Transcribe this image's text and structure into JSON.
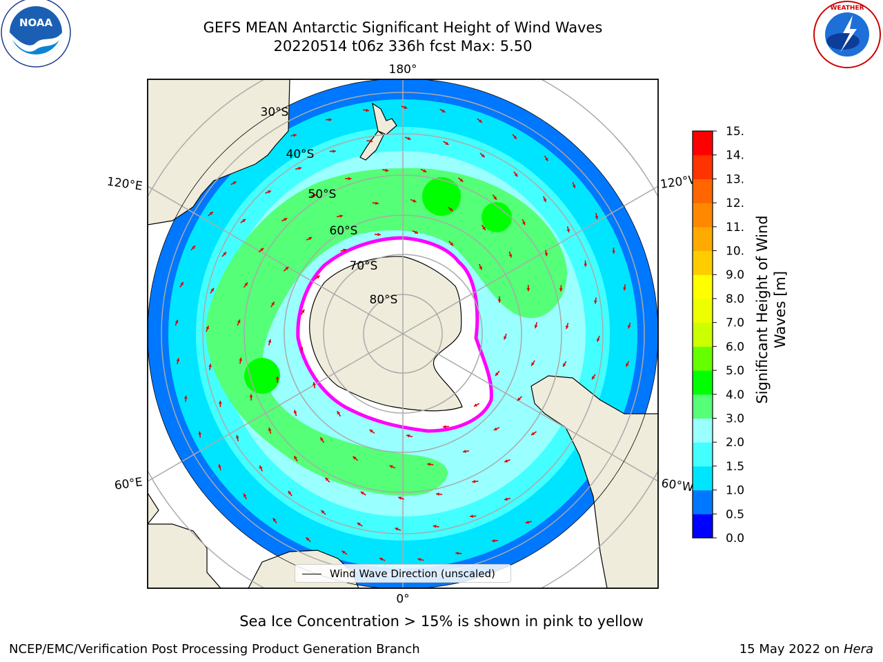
{
  "title": {
    "line1": "GEFS MEAN Antarctic Significant Height of Wind Waves",
    "line2": "20220514 t06z 336h fcst   Max: 5.50"
  },
  "map": {
    "projection": "South polar stereographic",
    "lon_labels": {
      "top": "180°",
      "bottom": "0°",
      "upper_left": "120°E",
      "lower_left": "60°E",
      "upper_right": "120°W",
      "lower_right": "60°W"
    },
    "lat_labels": [
      "30°S",
      "40°S",
      "50°S",
      "60°S",
      "70°S",
      "80°S"
    ],
    "colors": {
      "land": "#efecdb",
      "ocean_low": "#0066ff",
      "ocean_mid": "#00ffff",
      "ocean_high": "#55ff66",
      "ice_edge": "#ff00ff",
      "arrows": "#ff0000"
    }
  },
  "colorbar": {
    "label": "Significant Height of Wind Waves [m]",
    "label_line1": "Significant Height of Wind",
    "label_line2": "Waves [m]",
    "ticks": [
      "0.0",
      "0.5",
      "1.0",
      "1.5",
      "2.0",
      "3.0",
      "4.0",
      "5.0",
      "6.0",
      "7.0",
      "8.0",
      "9.0",
      "10.0",
      "11.0",
      "12.0",
      "13.0",
      "14.0",
      "15.0"
    ],
    "colors": [
      "#0000ff",
      "#0077ff",
      "#00e5ff",
      "#44ffff",
      "#99ffff",
      "#55ff77",
      "#00ff00",
      "#66ff00",
      "#ccff00",
      "#eeff00",
      "#ffff00",
      "#ffcc00",
      "#ffaa00",
      "#ff8800",
      "#ff6600",
      "#ff3300",
      "#ff0000"
    ]
  },
  "legend": {
    "label": "Wind Wave Direction (unscaled)"
  },
  "caption": "Sea Ice Concentration > 15% is shown in pink to yellow",
  "footer": {
    "left": "NCEP/EMC/Verification Post Processing Product Generation Branch",
    "right_prefix": "15 May 2022 on ",
    "right_host": "Hera"
  },
  "logos": {
    "noaa": "NOAA",
    "nws": "NATIONAL WEATHER SERVICE"
  }
}
